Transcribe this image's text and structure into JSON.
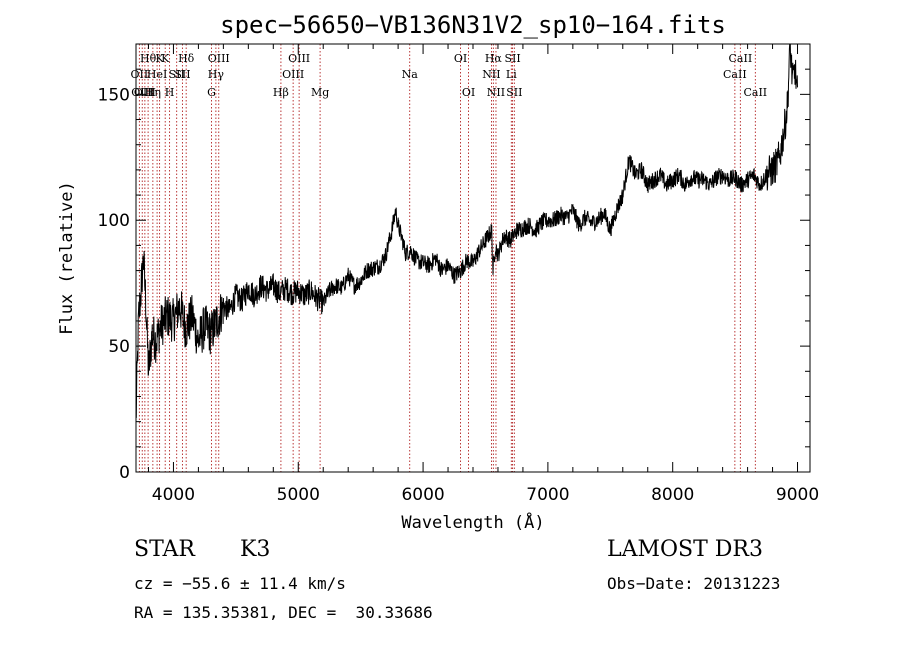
{
  "chart_data": {
    "type": "line",
    "title": "spec−56650−VB136N31V2_sp10−164.fits",
    "xlabel": "Wavelength (Å)",
    "ylabel": "Flux (relative)",
    "xlim": [
      3700,
      9100
    ],
    "ylim": [
      0,
      170
    ],
    "xticks": [
      4000,
      5000,
      6000,
      7000,
      8000,
      9000
    ],
    "xtick_labels": [
      "4000",
      "5000",
      "6000",
      "7000",
      "8000",
      "9000"
    ],
    "yticks": [
      0,
      50,
      100,
      150
    ],
    "ytick_labels": [
      "0",
      "50",
      "100",
      "150"
    ],
    "series": [
      {
        "name": "spectrum",
        "x": [
          3700,
          3720,
          3740,
          3760,
          3780,
          3800,
          3830,
          3860,
          3900,
          3950,
          4000,
          4050,
          4100,
          4150,
          4200,
          4250,
          4300,
          4350,
          4400,
          4450,
          4500,
          4550,
          4600,
          4650,
          4700,
          4750,
          4800,
          4850,
          4900,
          4950,
          5000,
          5050,
          5100,
          5150,
          5200,
          5250,
          5300,
          5350,
          5400,
          5450,
          5500,
          5550,
          5600,
          5650,
          5700,
          5750,
          5780,
          5800,
          5830,
          5860,
          5900,
          5950,
          6000,
          6050,
          6100,
          6150,
          6200,
          6250,
          6300,
          6350,
          6400,
          6450,
          6500,
          6550,
          6560,
          6580,
          6600,
          6650,
          6700,
          6750,
          6800,
          6850,
          6900,
          6950,
          7000,
          7050,
          7100,
          7150,
          7200,
          7250,
          7300,
          7350,
          7400,
          7450,
          7500,
          7550,
          7600,
          7620,
          7650,
          7700,
          7750,
          7800,
          7850,
          7900,
          7950,
          8000,
          8050,
          8100,
          8150,
          8200,
          8250,
          8300,
          8350,
          8400,
          8450,
          8500,
          8550,
          8600,
          8650,
          8700,
          8750,
          8800,
          8830,
          8860,
          8880,
          8900,
          8920,
          8940,
          8960,
          8980,
          9000
        ],
        "y": [
          20,
          60,
          72,
          85,
          66,
          40,
          55,
          52,
          58,
          62,
          60,
          66,
          57,
          62,
          52,
          58,
          55,
          60,
          66,
          64,
          70,
          68,
          73,
          70,
          74,
          72,
          74,
          71,
          73,
          71,
          72,
          70,
          72,
          69,
          67,
          72,
          74,
          73,
          78,
          74,
          76,
          80,
          81,
          82,
          86,
          96,
          104,
          98,
          93,
          87,
          88,
          84,
          83,
          82,
          85,
          80,
          82,
          78,
          80,
          84,
          83,
          88,
          92,
          96,
          80,
          90,
          86,
          94,
          92,
          96,
          97,
          98,
          96,
          99,
          100,
          100,
          102,
          101,
          104,
          98,
          101,
          99,
          100,
          103,
          96,
          104,
          110,
          116,
          124,
          118,
          120,
          114,
          116,
          118,
          114,
          116,
          118,
          114,
          117,
          116,
          116,
          114,
          117,
          118,
          116,
          117,
          114,
          116,
          118,
          114,
          118,
          120,
          122,
          126,
          132,
          138,
          146,
          170,
          155,
          160,
          150
        ]
      }
    ],
    "lines": [
      {
        "x": 3727,
        "label": "OII",
        "row": 2
      },
      {
        "x": 3750,
        "label": "OIII",
        "row": 3
      },
      {
        "x": 3771,
        "label": "OIII",
        "row": 3
      },
      {
        "x": 3797,
        "label": "Hθ",
        "row": 1
      },
      {
        "x": 3835,
        "label": "Hη",
        "row": 3
      },
      {
        "x": 3869,
        "label": "HeI",
        "row": 2
      },
      {
        "x": 3889,
        "label": "K",
        "row": 1
      },
      {
        "x": 3934,
        "label": "K",
        "row": 1
      },
      {
        "x": 3969,
        "label": "H",
        "row": 3
      },
      {
        "x": 4026,
        "label": "SII",
        "row": 2
      },
      {
        "x": 4072,
        "label": "SII",
        "row": 2
      },
      {
        "x": 4102,
        "label": "Hδ",
        "row": 1
      },
      {
        "x": 4305,
        "label": "G",
        "row": 3
      },
      {
        "x": 4340,
        "label": "Hγ",
        "row": 2
      },
      {
        "x": 4363,
        "label": "OIII",
        "row": 1
      },
      {
        "x": 4861,
        "label": "Hβ",
        "row": 3
      },
      {
        "x": 4959,
        "label": "OIII",
        "row": 2
      },
      {
        "x": 5007,
        "label": "OIII",
        "row": 1
      },
      {
        "x": 5175,
        "label": "Mg",
        "row": 3
      },
      {
        "x": 5893,
        "label": "Na",
        "row": 2
      },
      {
        "x": 6300,
        "label": "OI",
        "row": 1
      },
      {
        "x": 6364,
        "label": "OI",
        "row": 3
      },
      {
        "x": 6548,
        "label": "NII",
        "row": 2
      },
      {
        "x": 6563,
        "label": "Hα",
        "row": 1
      },
      {
        "x": 6584,
        "label": "NII",
        "row": 3
      },
      {
        "x": 6707,
        "label": "Li",
        "row": 2
      },
      {
        "x": 6717,
        "label": "SII",
        "row": 1
      },
      {
        "x": 6731,
        "label": "SII",
        "row": 3
      },
      {
        "x": 8498,
        "label": "CaII",
        "row": 2
      },
      {
        "x": 8542,
        "label": "CaII",
        "row": 1
      },
      {
        "x": 8662,
        "label": "CaII",
        "row": 3
      }
    ]
  },
  "info": {
    "object_class": "STAR",
    "subclass": "K3",
    "survey": "LAMOST DR3",
    "redshift": "cz = −55.6 ± 11.4 km/s",
    "obs_date": "Obs−Date: 20131223",
    "coords": "RA = 135.35381, DEC =  30.33686"
  },
  "colors": {
    "axis": "#000000",
    "spectrum": "#000000",
    "line_marker": "#b22222"
  }
}
